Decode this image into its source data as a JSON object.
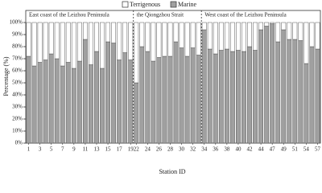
{
  "chart_data": {
    "type": "stacked-bar",
    "xlabel": "Station ID",
    "ylabel": "Percentage (%)",
    "ylim": [
      0,
      100
    ],
    "yticks": [
      {
        "value": 0,
        "label": "0%"
      },
      {
        "value": 10,
        "label": "10%"
      },
      {
        "value": 20,
        "label": "20%"
      },
      {
        "value": 30,
        "label": "30%"
      },
      {
        "value": 40,
        "label": "40%"
      },
      {
        "value": 50,
        "label": "50%"
      },
      {
        "value": 60,
        "label": "60%"
      },
      {
        "value": 70,
        "label": "70%"
      },
      {
        "value": 80,
        "label": "80%"
      },
      {
        "value": 90,
        "label": "90%"
      },
      {
        "value": 100,
        "label": "100%"
      }
    ],
    "sections": [
      {
        "label": "East coast of the Leizhou Peninsula",
        "categories": [
          "1",
          null,
          "3",
          null,
          "5",
          null,
          "7",
          null,
          "9",
          null,
          "11",
          null,
          "13",
          null,
          "15",
          null,
          "17",
          null,
          "19"
        ]
      },
      {
        "label": "the Qiongzhou Strait",
        "categories": [
          "22",
          null,
          "24",
          null,
          "26",
          null,
          "28",
          null,
          "30",
          null,
          "32",
          null
        ]
      },
      {
        "label": "West coast of the Leizhou Peninsula",
        "categories": [
          "34",
          null,
          "36",
          null,
          "38",
          null,
          "40",
          null,
          "42",
          null,
          "44",
          null,
          "47",
          null,
          "49",
          null,
          "51",
          null,
          "54",
          null,
          "57"
        ]
      }
    ],
    "series": [
      {
        "name": "Marine",
        "color": "#a0a0a0",
        "values": [
          72,
          64,
          67,
          69,
          74,
          70,
          64,
          67,
          62,
          68,
          86,
          65,
          76,
          62,
          84,
          83,
          69,
          75,
          69,
          50,
          80,
          76,
          68,
          71,
          72,
          72,
          84,
          79,
          72,
          79,
          73,
          94,
          78,
          74,
          77,
          78,
          76,
          77,
          76,
          80,
          77,
          94,
          97,
          99,
          84,
          94,
          86,
          86,
          85,
          66,
          80,
          78
        ]
      },
      {
        "name": "Terrigenous",
        "color": "#ffffff",
        "values": [
          28,
          36,
          33,
          31,
          26,
          30,
          36,
          33,
          38,
          32,
          14,
          35,
          24,
          38,
          16,
          17,
          31,
          25,
          31,
          50,
          20,
          24,
          32,
          29,
          28,
          28,
          16,
          21,
          28,
          21,
          27,
          6,
          22,
          26,
          23,
          22,
          24,
          23,
          24,
          20,
          23,
          6,
          3,
          1,
          16,
          6,
          14,
          14,
          15,
          34,
          20,
          22
        ]
      }
    ]
  }
}
